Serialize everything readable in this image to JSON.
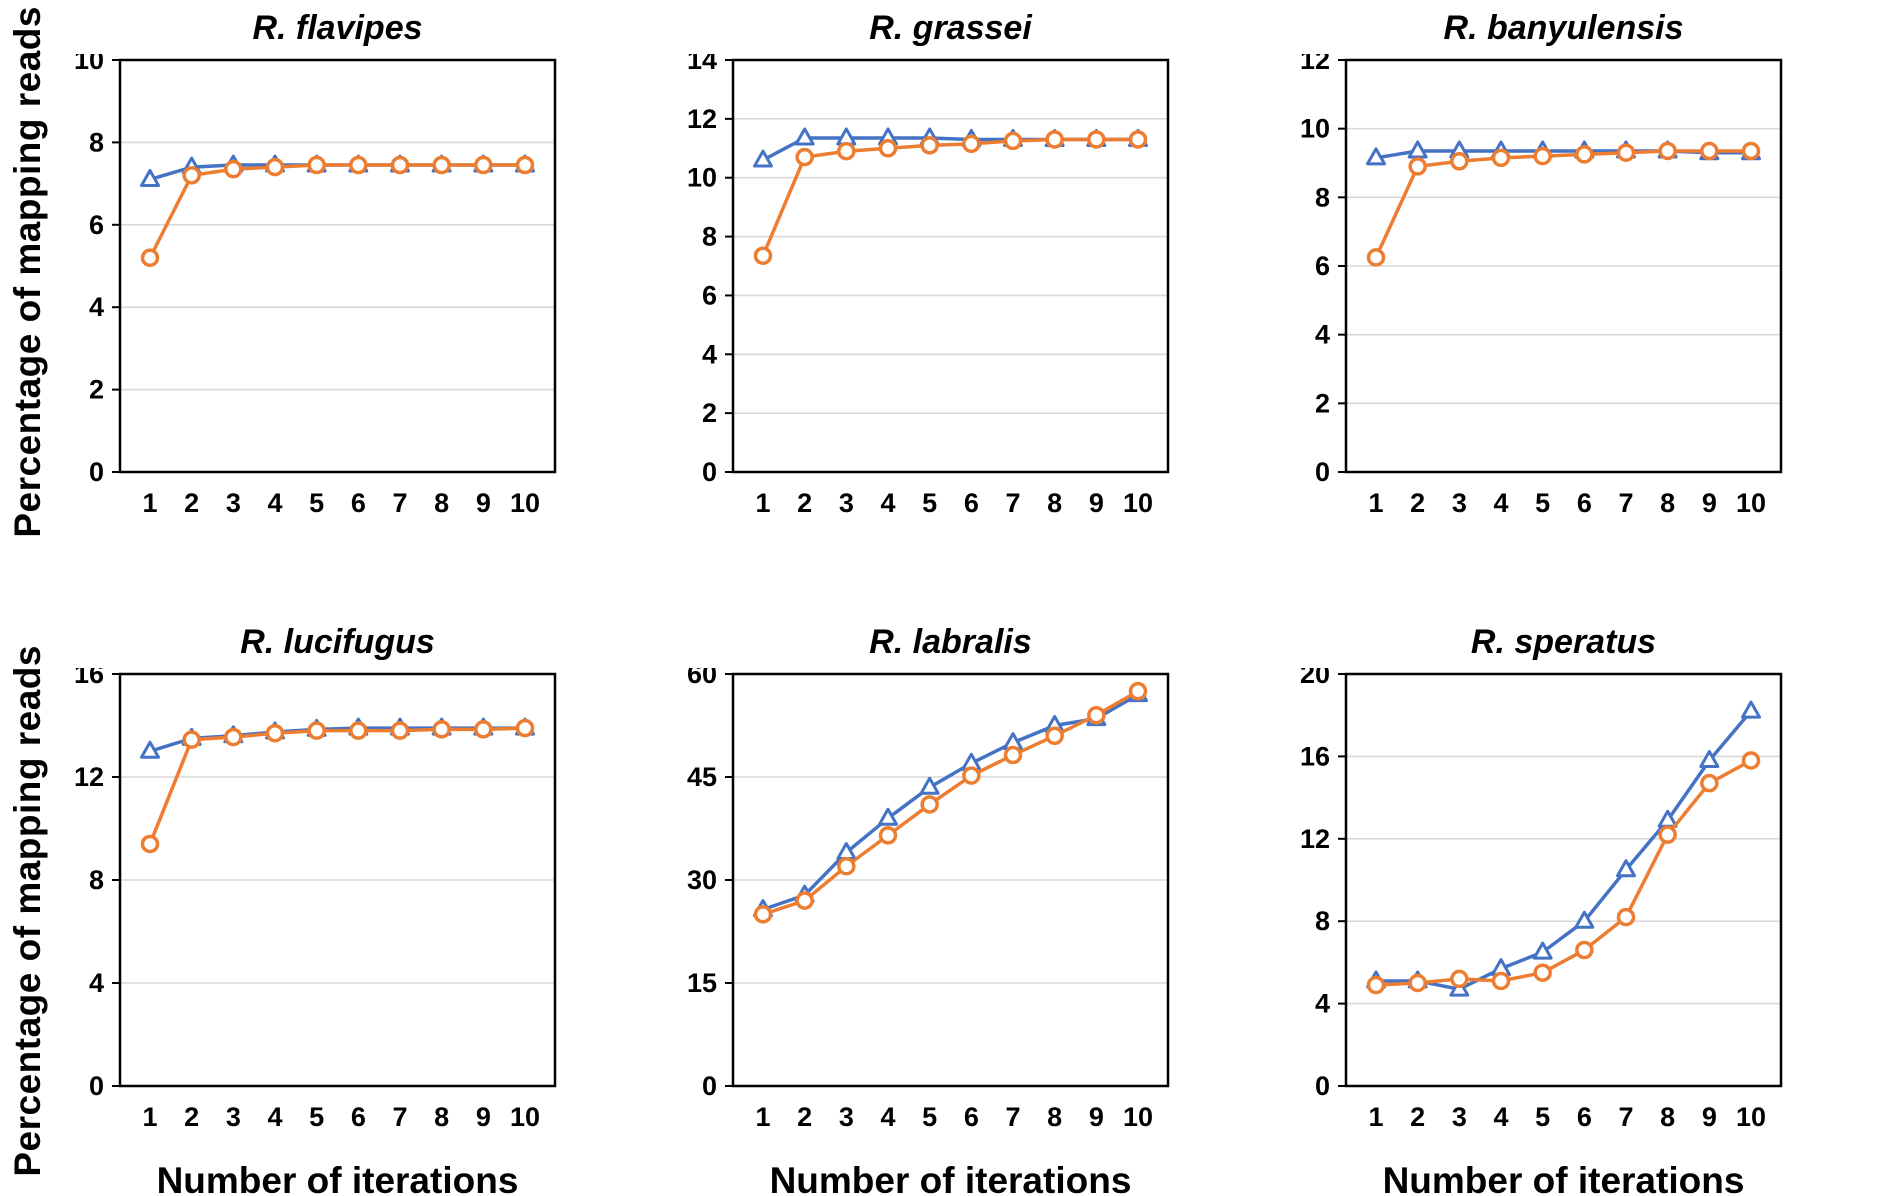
{
  "labels": {
    "ylabel": "Percentage of mapping reads",
    "xlabel": "Number of iterations"
  },
  "colors": {
    "series_blue": "#4472C4",
    "series_orange": "#ED7D31",
    "gridline": "#D9D9D9",
    "axis": "#000000",
    "marker_fill": "#FFFFFF"
  },
  "chart_data": [
    {
      "type": "line",
      "title": "R. flavipes",
      "x": [
        1,
        2,
        3,
        4,
        5,
        6,
        7,
        8,
        9,
        10
      ],
      "xlabel": "",
      "ylabel": "Percentage of mapping reads",
      "ylim": [
        0,
        10
      ],
      "ytick_step": 2,
      "grid": true,
      "legend": "none",
      "series": [
        {
          "name": "blue-triangle-series",
          "marker": "triangle",
          "color": "#4472C4",
          "values": [
            7.1,
            7.4,
            7.45,
            7.45,
            7.45,
            7.45,
            7.45,
            7.45,
            7.45,
            7.45
          ]
        },
        {
          "name": "orange-circle-series",
          "marker": "circle",
          "color": "#ED7D31",
          "values": [
            5.2,
            7.2,
            7.35,
            7.4,
            7.45,
            7.45,
            7.45,
            7.45,
            7.45,
            7.45
          ]
        }
      ]
    },
    {
      "type": "line",
      "title": "R. grassei",
      "x": [
        1,
        2,
        3,
        4,
        5,
        6,
        7,
        8,
        9,
        10
      ],
      "xlabel": "",
      "ylabel": "Percentage of mapping reads",
      "ylim": [
        0,
        14
      ],
      "ytick_step": 2,
      "grid": true,
      "legend": "none",
      "series": [
        {
          "name": "blue-triangle-series",
          "marker": "triangle",
          "color": "#4472C4",
          "values": [
            10.6,
            11.35,
            11.35,
            11.35,
            11.35,
            11.3,
            11.3,
            11.3,
            11.3,
            11.3
          ]
        },
        {
          "name": "orange-circle-series",
          "marker": "circle",
          "color": "#ED7D31",
          "values": [
            7.35,
            10.7,
            10.9,
            11.0,
            11.1,
            11.15,
            11.25,
            11.3,
            11.3,
            11.3
          ]
        }
      ]
    },
    {
      "type": "line",
      "title": "R. banyulensis",
      "x": [
        1,
        2,
        3,
        4,
        5,
        6,
        7,
        8,
        9,
        10
      ],
      "xlabel": "",
      "ylabel": "Percentage of mapping reads",
      "ylim": [
        0,
        12
      ],
      "ytick_step": 2,
      "grid": true,
      "legend": "none",
      "series": [
        {
          "name": "blue-triangle-series",
          "marker": "triangle",
          "color": "#4472C4",
          "values": [
            9.15,
            9.35,
            9.35,
            9.35,
            9.35,
            9.35,
            9.35,
            9.35,
            9.3,
            9.3
          ]
        },
        {
          "name": "orange-circle-series",
          "marker": "circle",
          "color": "#ED7D31",
          "values": [
            6.25,
            8.9,
            9.05,
            9.15,
            9.2,
            9.25,
            9.3,
            9.35,
            9.35,
            9.35
          ]
        }
      ]
    },
    {
      "type": "line",
      "title": "R. lucifugus",
      "x": [
        1,
        2,
        3,
        4,
        5,
        6,
        7,
        8,
        9,
        10
      ],
      "xlabel": "Number of iterations",
      "ylabel": "Percentage of mapping reads",
      "ylim": [
        0,
        16
      ],
      "ytick_step": 4,
      "grid": true,
      "legend": "none",
      "series": [
        {
          "name": "blue-triangle-series",
          "marker": "triangle",
          "color": "#4472C4",
          "values": [
            13.0,
            13.5,
            13.6,
            13.75,
            13.85,
            13.9,
            13.9,
            13.9,
            13.9,
            13.9
          ]
        },
        {
          "name": "orange-circle-series",
          "marker": "circle",
          "color": "#ED7D31",
          "values": [
            9.4,
            13.45,
            13.55,
            13.7,
            13.8,
            13.8,
            13.8,
            13.85,
            13.85,
            13.9
          ]
        }
      ]
    },
    {
      "type": "line",
      "title": "R. labralis",
      "x": [
        1,
        2,
        3,
        4,
        5,
        6,
        7,
        8,
        9,
        10
      ],
      "xlabel": "Number of iterations",
      "ylabel": "Percentage of mapping reads",
      "ylim": [
        0,
        60
      ],
      "ytick_step": 15,
      "grid": true,
      "legend": "none",
      "series": [
        {
          "name": "blue-triangle-series",
          "marker": "triangle",
          "color": "#4472C4",
          "values": [
            25.7,
            27.8,
            34.0,
            39.0,
            43.5,
            47.0,
            50.0,
            52.5,
            53.5,
            57.0
          ]
        },
        {
          "name": "orange-circle-series",
          "marker": "circle",
          "color": "#ED7D31",
          "values": [
            25.0,
            27.0,
            32.0,
            36.5,
            41.0,
            45.2,
            48.2,
            51.0,
            54.0,
            57.5
          ]
        }
      ]
    },
    {
      "type": "line",
      "title": "R. speratus",
      "x": [
        1,
        2,
        3,
        4,
        5,
        6,
        7,
        8,
        9,
        10
      ],
      "xlabel": "Number of iterations",
      "ylabel": "Percentage of mapping reads",
      "ylim": [
        0,
        20
      ],
      "ytick_step": 4,
      "grid": true,
      "legend": "none",
      "series": [
        {
          "name": "blue-triangle-series",
          "marker": "triangle",
          "color": "#4472C4",
          "values": [
            5.1,
            5.1,
            4.7,
            5.7,
            6.5,
            8.0,
            10.5,
            12.9,
            15.8,
            18.2
          ]
        },
        {
          "name": "orange-circle-series",
          "marker": "circle",
          "color": "#ED7D31",
          "values": [
            4.9,
            5.0,
            5.2,
            5.1,
            5.5,
            6.6,
            8.2,
            12.2,
            14.7,
            15.8
          ]
        }
      ]
    }
  ]
}
